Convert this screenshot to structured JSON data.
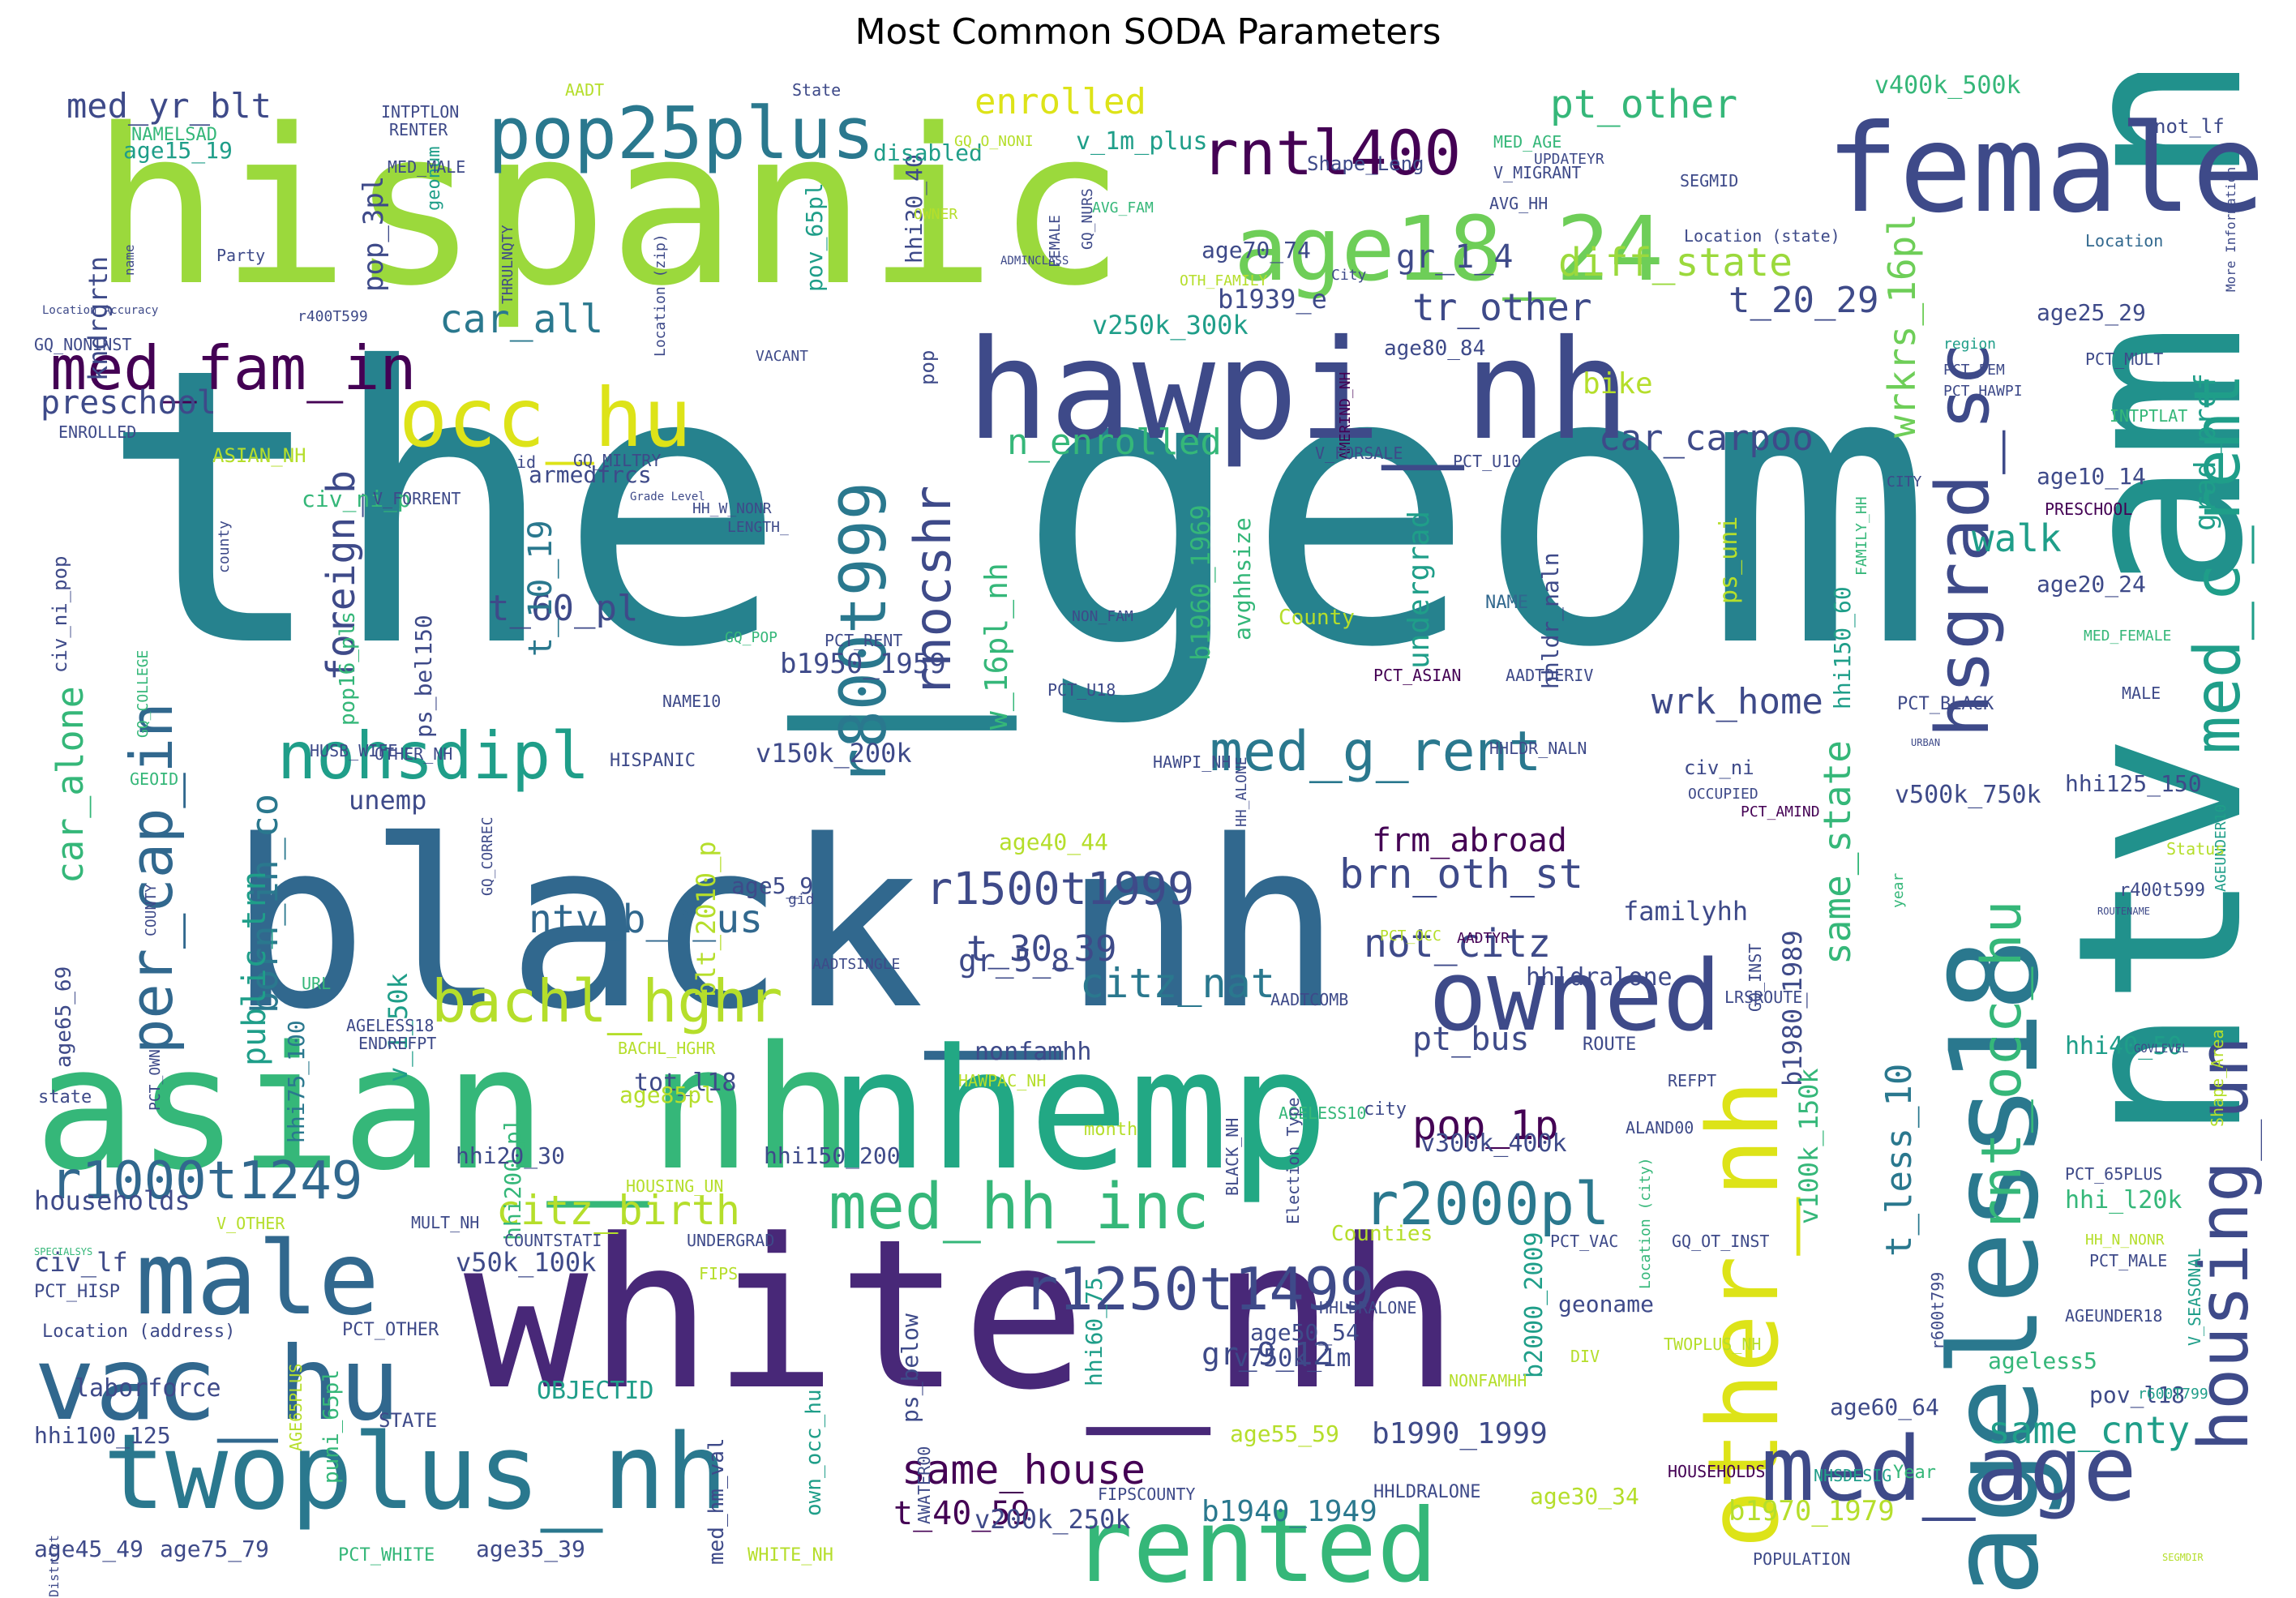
{
  "figure": {
    "title": "Most Common SODA Parameters",
    "type": "word-cloud",
    "palette": "viridis",
    "palette_colors": [
      "#440154",
      "#482878",
      "#3e4a89",
      "#31688e",
      "#26828e",
      "#1f9e89",
      "#35b779",
      "#6ece58",
      "#b5de2b",
      "#fde725"
    ],
    "background": "#ffffff"
  },
  "words": [
    {
      "text": "the_geom",
      "color": "#26828e"
    },
    {
      "text": "hispanic",
      "color": "#9bd93c"
    },
    {
      "text": "black_nh",
      "color": "#31688e"
    },
    {
      "text": "white_nh",
      "color": "#482878"
    },
    {
      "text": "asian_nh",
      "color": "#35b779"
    },
    {
      "text": "ntv_am_nh",
      "color": "#21918c"
    },
    {
      "text": "nhemp",
      "color": "#22a884"
    },
    {
      "text": "hawpi_nh",
      "color": "#3e4a89"
    },
    {
      "text": "female",
      "color": "#3e4a89"
    },
    {
      "text": "twoplus_nh",
      "color": "#2a788e"
    },
    {
      "text": "male",
      "color": "#31688e"
    },
    {
      "text": "vac_hu",
      "color": "#31688e"
    },
    {
      "text": "rented",
      "color": "#35b779"
    },
    {
      "text": "owned",
      "color": "#3e4a89"
    },
    {
      "text": "other_nh",
      "color": "#dde318"
    },
    {
      "text": "ageless18",
      "color": "#2a788e"
    },
    {
      "text": "med_age",
      "color": "#3e4a89"
    },
    {
      "text": "age18_24",
      "color": "#6ece58"
    },
    {
      "text": "pop25plus",
      "color": "#2a788e"
    },
    {
      "text": "rntl400",
      "color": "#440154"
    },
    {
      "text": "occ_hu",
      "color": "#dde318"
    },
    {
      "text": "med_fam_in",
      "color": "#440154"
    },
    {
      "text": "housing_un",
      "color": "#3e4a89"
    },
    {
      "text": "med_c_rent",
      "color": "#1f9e89"
    },
    {
      "text": "hsgrad_sc",
      "color": "#3e4a89"
    },
    {
      "text": "r1250t1499",
      "color": "#3e4a89"
    },
    {
      "text": "med_hh_inc",
      "color": "#35b779"
    },
    {
      "text": "r1000t1249",
      "color": "#31688e"
    },
    {
      "text": "nohsdipl",
      "color": "#1f9e89"
    },
    {
      "text": "med_g_rent",
      "color": "#2a788e"
    },
    {
      "text": "per_cap_in",
      "color": "#31688e"
    },
    {
      "text": "r800t999",
      "color": "#2a788e"
    },
    {
      "text": "r2000pl",
      "color": "#2a788e"
    },
    {
      "text": "rnocshr",
      "color": "#3e4a89"
    },
    {
      "text": "bachl_hghr",
      "color": "#b5de2b"
    },
    {
      "text": "rnt_occ_hu",
      "color": "#35b779"
    },
    {
      "text": "r1500t1999",
      "color": "#3e4a89"
    },
    {
      "text": "citz_birth",
      "color": "#b5de2b"
    },
    {
      "text": "same_house",
      "color": "#440154"
    },
    {
      "text": "citz_nat",
      "color": "#2a788e"
    },
    {
      "text": "brn_oth_st",
      "color": "#3e4a89"
    },
    {
      "text": "ntv_b_o_us",
      "color": "#31688e"
    },
    {
      "text": "not_citz",
      "color": "#3e4a89"
    },
    {
      "text": "pop_1p",
      "color": "#440154"
    },
    {
      "text": "enrolled",
      "color": "#dde318"
    },
    {
      "text": "pt_other",
      "color": "#35b779"
    },
    {
      "text": "med_yr_blt",
      "color": "#3e4a89"
    },
    {
      "text": "diff_state",
      "color": "#9bd93c"
    },
    {
      "text": "car_all",
      "color": "#2a788e"
    },
    {
      "text": "tr_other",
      "color": "#3e4a89"
    },
    {
      "text": "t_20_29",
      "color": "#3e4a89"
    },
    {
      "text": "gr_1_4",
      "color": "#3e4a89"
    },
    {
      "text": "car_carpoo",
      "color": "#3e4a89"
    },
    {
      "text": "preschool",
      "color": "#3e4a89"
    },
    {
      "text": "foreign_b",
      "color": "#3e4a89"
    },
    {
      "text": "born_in_co",
      "color": "#2a788e"
    },
    {
      "text": "public_trn",
      "color": "#1f9e89"
    },
    {
      "text": "car_alone",
      "color": "#35b779"
    },
    {
      "text": "wrk_home",
      "color": "#3e4a89"
    },
    {
      "text": "frm_abroad",
      "color": "#440154"
    },
    {
      "text": "n_enrolled",
      "color": "#35b779"
    },
    {
      "text": "walk",
      "color": "#1f9e89"
    },
    {
      "text": "same_state",
      "color": "#35b779"
    },
    {
      "text": "same_cnty",
      "color": "#1f9e89"
    },
    {
      "text": "t_less_10",
      "color": "#2a788e"
    },
    {
      "text": "wrkrs_16pl",
      "color": "#6ece58"
    },
    {
      "text": "w_16pl_nh",
      "color": "#35b779"
    },
    {
      "text": "t_60_pl",
      "color": "#3e4a89"
    },
    {
      "text": "t_10_19",
      "color": "#2a788e"
    },
    {
      "text": "t_30_39",
      "color": "#3e4a89"
    },
    {
      "text": "t_40_59",
      "color": "#440154"
    },
    {
      "text": "gr_5_8",
      "color": "#3e4a89"
    },
    {
      "text": "gr_9_12",
      "color": "#3e4a89"
    },
    {
      "text": "bike",
      "color": "#b5de2b"
    },
    {
      "text": "pt_bus",
      "color": "#3e4a89"
    },
    {
      "text": "undergrad",
      "color": "#1f9e89"
    },
    {
      "text": "grad_prof",
      "color": "#1f9e89"
    },
    {
      "text": "kndrgrtn",
      "color": "#3e4a89"
    },
    {
      "text": "pop_3pl",
      "color": "#3e4a89"
    },
    {
      "text": "laborforce",
      "color": "#3e4a89"
    },
    {
      "text": "households",
      "color": "#3e4a89"
    },
    {
      "text": "civ_lf",
      "color": "#3e4a89"
    },
    {
      "text": "unemp",
      "color": "#3e4a89"
    },
    {
      "text": "OBJECTID",
      "color": "#1f9e89"
    },
    {
      "text": "b1950_1959",
      "color": "#3e4a89"
    },
    {
      "text": "b1960_1969",
      "color": "#35b779"
    },
    {
      "text": "b1980_1989",
      "color": "#3e4a89"
    },
    {
      "text": "b1990_1999",
      "color": "#3e4a89"
    },
    {
      "text": "b1940_1949",
      "color": "#2a788e"
    },
    {
      "text": "b1970_1979",
      "color": "#b5de2b"
    },
    {
      "text": "b2000_2009",
      "color": "#1f9e89"
    },
    {
      "text": "b1939_e",
      "color": "#3e4a89"
    },
    {
      "text": "blt_2010_p",
      "color": "#b5de2b"
    },
    {
      "text": "v150k_200k",
      "color": "#3e4a89"
    },
    {
      "text": "v250k_300k",
      "color": "#1f9e89"
    },
    {
      "text": "v300k_400k",
      "color": "#3e4a89"
    },
    {
      "text": "v400k_500k",
      "color": "#35b779"
    },
    {
      "text": "v500k_750k",
      "color": "#3e4a89"
    },
    {
      "text": "v750k_1m",
      "color": "#3e4a89"
    },
    {
      "text": "v200k_250k",
      "color": "#3e4a89"
    },
    {
      "text": "v50k_100k",
      "color": "#3e4a89"
    },
    {
      "text": "v100k_150k",
      "color": "#35b779"
    },
    {
      "text": "v_1_50k",
      "color": "#1f9e89"
    },
    {
      "text": "v_1m_plus",
      "color": "#1f9e89"
    },
    {
      "text": "hhi125_150",
      "color": "#3e4a89"
    },
    {
      "text": "hhi150_200",
      "color": "#3e4a89"
    },
    {
      "text": "hhi200_pl",
      "color": "#35b779"
    },
    {
      "text": "hhi100_125",
      "color": "#3e4a89"
    },
    {
      "text": "hhi75_100",
      "color": "#2a788e"
    },
    {
      "text": "hhi60_75",
      "color": "#1f9e89"
    },
    {
      "text": "hhi40_50",
      "color": "#1f9e89"
    },
    {
      "text": "hhi150_60",
      "color": "#1f9e89"
    },
    {
      "text": "hhi30_40",
      "color": "#3e4a89"
    },
    {
      "text": "hhi20_30",
      "color": "#3e4a89"
    },
    {
      "text": "hhi_l20k",
      "color": "#35b779"
    },
    {
      "text": "hhldr_naln",
      "color": "#3e4a89"
    },
    {
      "text": "hhldralone",
      "color": "#3e4a89"
    },
    {
      "text": "familyhh",
      "color": "#3e4a89"
    },
    {
      "text": "nonfamhh",
      "color": "#3e4a89"
    },
    {
      "text": "avghhsize",
      "color": "#35b779"
    },
    {
      "text": "ps_uni",
      "color": "#b5de2b"
    },
    {
      "text": "ps_below",
      "color": "#3e4a89"
    },
    {
      "text": "ps_bel150",
      "color": "#3e4a89"
    },
    {
      "text": "pop16_pls",
      "color": "#35b779"
    },
    {
      "text": "pov_65pl",
      "color": "#1f9e89"
    },
    {
      "text": "pov_l18",
      "color": "#3e4a89"
    },
    {
      "text": "puni_65pl",
      "color": "#35b779"
    },
    {
      "text": "own_occ_hu",
      "color": "#1f9e89"
    },
    {
      "text": "med_hm_val",
      "color": "#3e4a89"
    },
    {
      "text": "tot_l18",
      "color": "#3e4a89"
    },
    {
      "text": "armedfrcs",
      "color": "#3e4a89"
    },
    {
      "text": "disabled",
      "color": "#1f9e89"
    },
    {
      "text": "civ_ni_p",
      "color": "#35b779"
    },
    {
      "text": "civ_ni_pop",
      "color": "#3e4a89"
    },
    {
      "text": "civ_ni",
      "color": "#3e4a89"
    },
    {
      "text": "geonum",
      "color": "#1f9e89"
    },
    {
      "text": "geoname",
      "color": "#3e4a89"
    },
    {
      "text": "age15_19",
      "color": "#1f9e89"
    },
    {
      "text": "age70_74",
      "color": "#3e4a89"
    },
    {
      "text": "age80_84",
      "color": "#3e4a89"
    },
    {
      "text": "age25_29",
      "color": "#3e4a89"
    },
    {
      "text": "age10_14",
      "color": "#3e4a89"
    },
    {
      "text": "age20_24",
      "color": "#3e4a89"
    },
    {
      "text": "age5_9",
      "color": "#3e4a89"
    },
    {
      "text": "age40_44",
      "color": "#b5de2b"
    },
    {
      "text": "age65_69",
      "color": "#3e4a89"
    },
    {
      "text": "age85pl",
      "color": "#b5de2b"
    },
    {
      "text": "age50_54",
      "color": "#3e4a89"
    },
    {
      "text": "age55_59",
      "color": "#b5de2b"
    },
    {
      "text": "age60_64",
      "color": "#3e4a89"
    },
    {
      "text": "age30_34",
      "color": "#b5de2b"
    },
    {
      "text": "age45_49",
      "color": "#3e4a89"
    },
    {
      "text": "age75_79",
      "color": "#3e4a89"
    },
    {
      "text": "age35_39",
      "color": "#3e4a89"
    },
    {
      "text": "ageless5",
      "color": "#35b779"
    },
    {
      "text": "pop",
      "color": "#3e4a89"
    },
    {
      "text": "NAME",
      "color": "#31688e"
    },
    {
      "text": "County",
      "color": "#b5de2b"
    },
    {
      "text": "Counties",
      "color": "#b5de2b"
    },
    {
      "text": "HISPANIC",
      "color": "#3e4a89"
    },
    {
      "text": "HAWPI_NH",
      "color": "#3e4a89"
    },
    {
      "text": "PCT_U18",
      "color": "#3e4a89"
    },
    {
      "text": "NAME10",
      "color": "#3e4a89"
    },
    {
      "text": "OTHER_NH",
      "color": "#3e4a89"
    },
    {
      "text": "PCT_RENT",
      "color": "#3e4a89"
    },
    {
      "text": "NON_FAM",
      "color": "#3e4a89"
    },
    {
      "text": "PCT_ASIAN",
      "color": "#440154"
    },
    {
      "text": "AADTDERIV",
      "color": "#3e4a89"
    },
    {
      "text": "PCT_BLACK",
      "color": "#3e4a89"
    },
    {
      "text": "HHLDR_NALN",
      "color": "#3e4a89"
    },
    {
      "text": "MALE",
      "color": "#3e4a89"
    },
    {
      "text": "AGEUNDER10",
      "color": "#1f9e89"
    },
    {
      "text": "MED_FEMALE",
      "color": "#35b779"
    },
    {
      "text": "PRESCHOOL",
      "color": "#440154"
    },
    {
      "text": "CITY",
      "color": "#3e4a89"
    },
    {
      "text": "INTPTLAT",
      "color": "#35b779"
    },
    {
      "text": "PCT_MULT",
      "color": "#3e4a89"
    },
    {
      "text": "PCT_HAWPI",
      "color": "#3e4a89"
    },
    {
      "text": "PCT_FEM",
      "color": "#3e4a89"
    },
    {
      "text": "region",
      "color": "#1f9e89"
    },
    {
      "text": "Location",
      "color": "#31688e"
    },
    {
      "text": "Location (state)",
      "color": "#3e4a89"
    },
    {
      "text": "AVG_HH",
      "color": "#3e4a89"
    },
    {
      "text": "AVG_FAM",
      "color": "#35b779"
    },
    {
      "text": "V_MIGRANT",
      "color": "#3e4a89"
    },
    {
      "text": "MED_AGE",
      "color": "#35b779"
    },
    {
      "text": "UPDATEYR",
      "color": "#3e4a89"
    },
    {
      "text": "SEGMID",
      "color": "#3e4a89"
    },
    {
      "text": "not_lf",
      "color": "#3e4a89"
    },
    {
      "text": "More Information",
      "color": "#3e4a89"
    },
    {
      "text": "Shape_Leng",
      "color": "#3e4a89"
    },
    {
      "text": "GQ_O_NONI",
      "color": "#b5de2b"
    },
    {
      "text": "GQ_NURS",
      "color": "#3e4a89"
    },
    {
      "text": "FEMALE",
      "color": "#3e4a89"
    },
    {
      "text": "OWNER",
      "color": "#b5de2b"
    },
    {
      "text": "ADMINCLASS",
      "color": "#3e4a89"
    },
    {
      "text": "City",
      "color": "#3e4a89"
    },
    {
      "text": "OTH_FAMILY",
      "color": "#b5de2b"
    },
    {
      "text": "Location (zip)",
      "color": "#3e4a89"
    },
    {
      "text": "VACANT",
      "color": "#3e4a89"
    },
    {
      "text": "GQ_MILTRY",
      "color": "#3e4a89"
    },
    {
      "text": "Grade Level",
      "color": "#3e4a89"
    },
    {
      "text": "id",
      "color": "#3e4a89"
    },
    {
      "text": "V_FORRENT",
      "color": "#3e4a89"
    },
    {
      "text": "HH_W_NONR",
      "color": "#3e4a89"
    },
    {
      "text": "LENGTH_",
      "color": "#3e4a89"
    },
    {
      "text": "ASIAN_NH",
      "color": "#b5de2b"
    },
    {
      "text": "ENROLLED",
      "color": "#3e4a89"
    },
    {
      "text": "GQ_NONINST",
      "color": "#3e4a89"
    },
    {
      "text": "Location Accuracy",
      "color": "#3e4a89"
    },
    {
      "text": "r400T599",
      "color": "#3e4a89"
    },
    {
      "text": "r400t599",
      "color": "#3e4a89"
    },
    {
      "text": "name",
      "color": "#3e4a89"
    },
    {
      "text": "Party",
      "color": "#3e4a89"
    },
    {
      "text": "THRULNQTY",
      "color": "#3e4a89"
    },
    {
      "text": "INTPTLON",
      "color": "#3e4a89"
    },
    {
      "text": "RENTER",
      "color": "#3e4a89"
    },
    {
      "text": "MED_MALE",
      "color": "#3e4a89"
    },
    {
      "text": "NAMELSAD",
      "color": "#35b779"
    },
    {
      "text": "AADT",
      "color": "#b5de2b"
    },
    {
      "text": "State",
      "color": "#3e4a89"
    },
    {
      "text": "AMERIND_NH",
      "color": "#440154"
    },
    {
      "text": "PCT_U10",
      "color": "#3e4a89"
    },
    {
      "text": "V_FORSALE",
      "color": "#3e4a89"
    },
    {
      "text": "GQ_POP",
      "color": "#35b779"
    },
    {
      "text": "GQ_COLLEGE",
      "color": "#35b779"
    },
    {
      "text": "county",
      "color": "#3e4a89"
    },
    {
      "text": "GEOID",
      "color": "#35b779"
    },
    {
      "text": "HUSB_WIFE",
      "color": "#3e4a89"
    },
    {
      "text": "GQ_CORREC",
      "color": "#3e4a89"
    },
    {
      "text": "COUNTY",
      "color": "#3e4a89"
    },
    {
      "text": "gid",
      "color": "#3e4a89"
    },
    {
      "text": "URL",
      "color": "#35b779"
    },
    {
      "text": "AGELESS18",
      "color": "#3e4a89"
    },
    {
      "text": "AADTSINGLE",
      "color": "#3e4a89"
    },
    {
      "text": "HAWPAC_NH",
      "color": "#b5de2b"
    },
    {
      "text": "AADTCOMB",
      "color": "#3e4a89"
    },
    {
      "text": "HH_ALONE",
      "color": "#3e4a89"
    },
    {
      "text": "ENDREFPT",
      "color": "#3e4a89"
    },
    {
      "text": "BACHL_HGHR",
      "color": "#b5de2b"
    },
    {
      "text": "AGELESS10",
      "color": "#35b779"
    },
    {
      "text": "Election Type",
      "color": "#3e4a89"
    },
    {
      "text": "BLACK_NH",
      "color": "#3e4a89"
    },
    {
      "text": "month",
      "color": "#b5de2b"
    },
    {
      "text": "city",
      "color": "#3e4a89"
    },
    {
      "text": "ALAND00",
      "color": "#3e4a89"
    },
    {
      "text": "ROUTE",
      "color": "#3e4a89"
    },
    {
      "text": "REFPT",
      "color": "#3e4a89"
    },
    {
      "text": "LRSROUTE",
      "color": "#3e4a89"
    },
    {
      "text": "GQ_INST",
      "color": "#3e4a89"
    },
    {
      "text": "AADTYR",
      "color": "#440154"
    },
    {
      "text": "PCT_AMIND",
      "color": "#440154"
    },
    {
      "text": "PCT_OCC",
      "color": "#b5de2b"
    },
    {
      "text": "OCCUPIED",
      "color": "#3e4a89"
    },
    {
      "text": "HHLDRALONE",
      "color": "#3e4a89"
    },
    {
      "text": "NONFAMHH",
      "color": "#b5de2b"
    },
    {
      "text": "DIV",
      "color": "#b5de2b"
    },
    {
      "text": "TWOPLUS_NH",
      "color": "#b5de2b"
    },
    {
      "text": "HOUSEHOLDS",
      "color": "#440154"
    },
    {
      "text": "NHSDESIG",
      "color": "#1f9e89"
    },
    {
      "text": "POPULATION",
      "color": "#3e4a89"
    },
    {
      "text": "SEGMDIR",
      "color": "#b5de2b"
    },
    {
      "text": "Year",
      "color": "#35b779"
    },
    {
      "text": "r600t799",
      "color": "#3e4a89"
    },
    {
      "text": "r600T799",
      "color": "#1f9e89"
    },
    {
      "text": "AGEUNDER18",
      "color": "#3e4a89"
    },
    {
      "text": "PCT_MALE",
      "color": "#3e4a89"
    },
    {
      "text": "HH_N_NONR",
      "color": "#b5de2b"
    },
    {
      "text": "PCT_65PLUS",
      "color": "#3e4a89"
    },
    {
      "text": "V_SEASONAL",
      "color": "#1f9e89"
    },
    {
      "text": "Shape_Area",
      "color": "#b5de2b"
    },
    {
      "text": "GOVLEVEL",
      "color": "#3e4a89"
    },
    {
      "text": "ROUTENAME",
      "color": "#3e4a89"
    },
    {
      "text": "Status",
      "color": "#b5de2b"
    },
    {
      "text": "year",
      "color": "#35b779"
    },
    {
      "text": "URBAN",
      "color": "#3e4a89"
    },
    {
      "text": "FAMILY_HH",
      "color": "#35b779"
    },
    {
      "text": "PCT_VAC",
      "color": "#3e4a89"
    },
    {
      "text": "GQ_OT_INST",
      "color": "#3e4a89"
    },
    {
      "text": "Location (city)",
      "color": "#35b779"
    },
    {
      "text": "AWATER00",
      "color": "#3e4a89"
    },
    {
      "text": "FIPS",
      "color": "#b5de2b"
    },
    {
      "text": "COUNTSTATI",
      "color": "#3e4a89"
    },
    {
      "text": "UNDERGRAD",
      "color": "#3e4a89"
    },
    {
      "text": "HOUSING_UN",
      "color": "#b5de2b"
    },
    {
      "text": "MULT_NH",
      "color": "#3e4a89"
    },
    {
      "text": "V_OTHER",
      "color": "#b5de2b"
    },
    {
      "text": "SPECIALSYS",
      "color": "#35b779"
    },
    {
      "text": "PCT_HISP",
      "color": "#3e4a89"
    },
    {
      "text": "Location (address)",
      "color": "#3e4a89"
    },
    {
      "text": "PCT_OTHER",
      "color": "#3e4a89"
    },
    {
      "text": "AGE65PLUS",
      "color": "#b5de2b"
    },
    {
      "text": "STATE",
      "color": "#3e4a89"
    },
    {
      "text": "District",
      "color": "#3e4a89"
    },
    {
      "text": "PCT_WHITE",
      "color": "#35b779"
    },
    {
      "text": "WHITE_NH",
      "color": "#b5de2b"
    },
    {
      "text": "FIPSCOUNTY",
      "color": "#3e4a89"
    },
    {
      "text": "HHLDRALONE",
      "color": "#3e4a89"
    },
    {
      "text": "PCT_OWN",
      "color": "#3e4a89"
    },
    {
      "text": "state",
      "color": "#3e4a89"
    }
  ]
}
